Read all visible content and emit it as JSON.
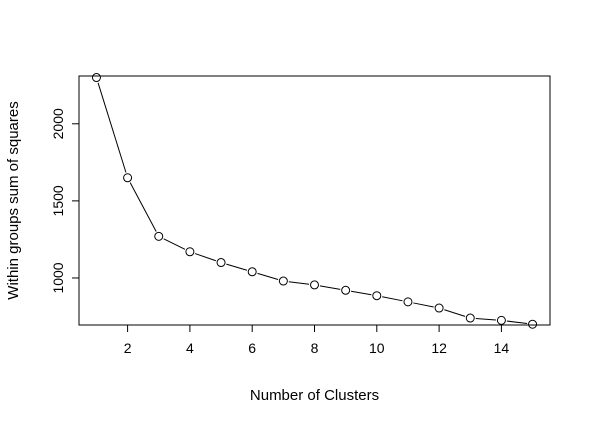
{
  "chart_data": {
    "type": "line",
    "markers": "open-circle",
    "title": "",
    "xlabel": "Number of Clusters",
    "ylabel": "Within groups sum of squares",
    "xlim": [
      0.44,
      15.56
    ],
    "ylim": [
      695,
      2310
    ],
    "xticks": [
      2,
      4,
      6,
      8,
      10,
      12,
      14
    ],
    "yticks": [
      1000,
      1500,
      2000
    ],
    "grid": false,
    "legend": "none",
    "colors": {
      "line": "#000000",
      "marker_fill": "#ffffff",
      "frame": "#000000"
    },
    "series": [
      {
        "x": [
          1,
          2,
          3,
          4,
          5,
          6,
          7,
          8,
          9,
          10,
          11,
          12,
          13,
          14,
          15
        ],
        "y": [
          2300,
          1650,
          1270,
          1170,
          1100,
          1040,
          980,
          955,
          920,
          885,
          845,
          805,
          740,
          725,
          700
        ]
      }
    ]
  }
}
